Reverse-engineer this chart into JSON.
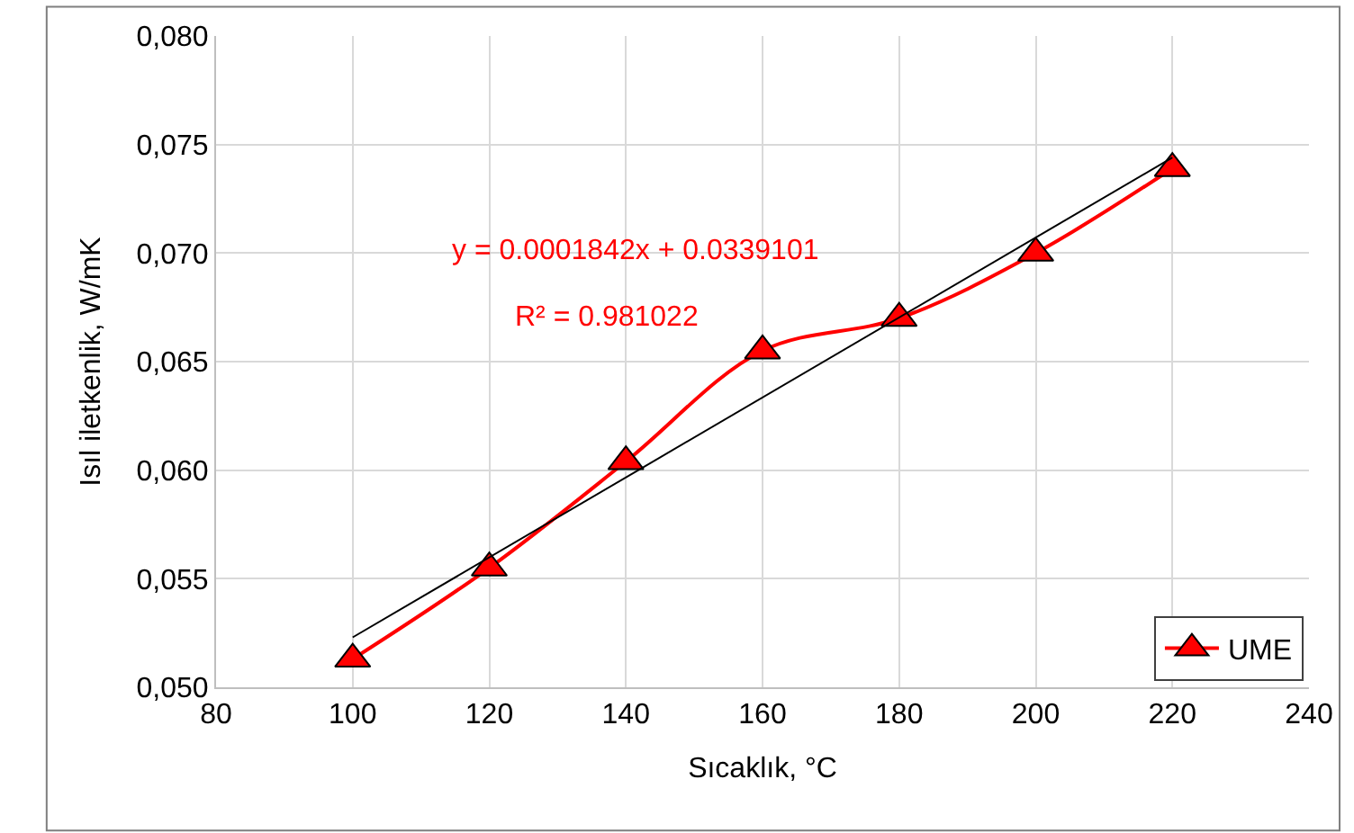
{
  "chart_data": {
    "type": "line",
    "xlabel": "Sıcaklık, °C",
    "ylabel": "Isıl iletkenlik, W/mK",
    "x": [
      100,
      120,
      140,
      160,
      180,
      200,
      220
    ],
    "series": [
      {
        "name": "UME",
        "color": "#ff0000",
        "values": [
          0.0513,
          0.0555,
          0.0604,
          0.0655,
          0.067,
          0.07,
          0.0739
        ],
        "marker": "triangle"
      },
      {
        "type": "line",
        "color": "#000000",
        "x": [
          100,
          220
        ],
        "values": [
          0.0523,
          0.0744
        ],
        "marker": "none"
      }
    ],
    "annotations": [
      "y = 0.0001842x + 0.0339101",
      "R² = 0.981022"
    ],
    "xlim": [
      80,
      240
    ],
    "xticks": [
      80,
      100,
      120,
      140,
      160,
      180,
      200,
      220,
      240
    ],
    "ylim": [
      0.05,
      0.08
    ],
    "yticks": [
      {
        "value": 0.05,
        "label": "0,050"
      },
      {
        "value": 0.055,
        "label": "0,055"
      },
      {
        "value": 0.06,
        "label": "0,060"
      },
      {
        "value": 0.065,
        "label": "0,065"
      },
      {
        "value": 0.07,
        "label": "0,070"
      },
      {
        "value": 0.075,
        "label": "0,075"
      },
      {
        "value": 0.08,
        "label": "0,080"
      }
    ],
    "grid": true,
    "legend": "bottom right"
  }
}
